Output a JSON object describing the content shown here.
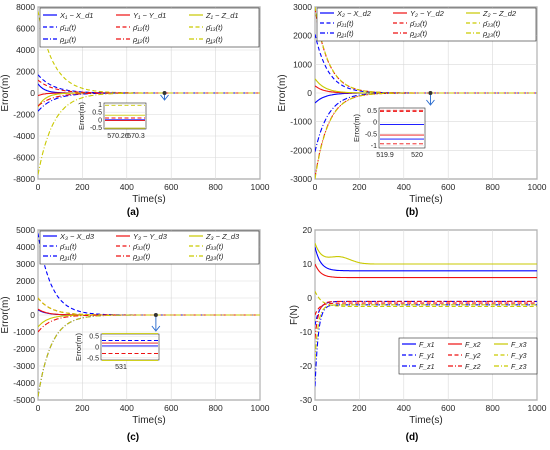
{
  "figure": {
    "panels": [
      "(a)",
      "(b)",
      "(c)",
      "(d)"
    ]
  },
  "colors": {
    "x": "#0000ff",
    "y": "#ee1111",
    "z": "#c9c900",
    "grid": "#d9d9d9",
    "axis": "#262626"
  },
  "chart_data": [
    {
      "id": "a",
      "type": "line",
      "panel_label": "(a)",
      "xlabel": "Time(s)",
      "ylabel": "Error(m)",
      "xlim": [
        0,
        1000
      ],
      "ylim": [
        -8000,
        8000
      ],
      "xticks": [
        0,
        200,
        400,
        600,
        800,
        1000
      ],
      "yticks": [
        -8000,
        -6000,
        -4000,
        -2000,
        0,
        2000,
        4000,
        6000,
        8000
      ],
      "grid": true,
      "legend": "top, 3 columns, 2 rows",
      "series": [
        {
          "name": "X₁ − X_d1",
          "color": "x",
          "style": "solid",
          "y0": 850,
          "tau": 30
        },
        {
          "name": "Y₁ − Y_d1",
          "color": "y",
          "style": "solid",
          "y0": -250,
          "tau": 28
        },
        {
          "name": "Z₁ − Z_d1",
          "color": "z",
          "style": "solid",
          "y0": -1300,
          "tau": 35
        },
        {
          "name": "ρ̄₁₁(t)",
          "color": "x",
          "style": "dash",
          "y0": 1700,
          "tau": 70
        },
        {
          "name": "ρ̄₁₂(t)",
          "color": "y",
          "style": "dash",
          "y0": 1200,
          "tau": 70
        },
        {
          "name": "ρ̄₁₃(t)",
          "color": "z",
          "style": "dash",
          "y0": 7600,
          "tau": 70
        },
        {
          "name": "ρ̲₁₁(t)",
          "color": "x",
          "style": "dashdot",
          "y0": -1700,
          "tau": 70
        },
        {
          "name": "ρ̲₁₂(t)",
          "color": "y",
          "style": "dashdot",
          "y0": -1200,
          "tau": 70
        },
        {
          "name": "ρ̲₁₃(t)",
          "color": "z",
          "style": "dashdot",
          "y0": -7600,
          "tau": 70
        }
      ],
      "inset": {
        "ylabel": "Error(m)",
        "xticks": [
          "570.26",
          "570.3"
        ],
        "yticks": [
          "1",
          "0.5",
          "0",
          "-0.5"
        ],
        "lines": [
          {
            "y": 0.3,
            "color": "z",
            "style": "solid"
          },
          {
            "y": 0.12,
            "color": "y",
            "style": "dash"
          },
          {
            "y": 0.0,
            "color": "x",
            "style": "solid"
          },
          {
            "y": -0.05,
            "color": "y",
            "style": "solid"
          },
          {
            "y": -0.55,
            "color": "z",
            "style": "solid"
          },
          {
            "y": 0.95,
            "color": "z",
            "style": "dash"
          }
        ]
      }
    },
    {
      "id": "b",
      "type": "line",
      "panel_label": "(b)",
      "xlabel": "Time(s)",
      "ylabel": "Error(m)",
      "xlim": [
        0,
        1000
      ],
      "ylim": [
        -3000,
        3000
      ],
      "xticks": [
        0,
        200,
        400,
        600,
        800,
        1000
      ],
      "yticks": [
        -3000,
        -2000,
        -1000,
        0,
        1000,
        2000,
        3000
      ],
      "grid": true,
      "legend": "top, 3 columns, 3 rows",
      "series": [
        {
          "name": "X₂ − X_d2",
          "color": "x",
          "style": "solid",
          "y0": -350,
          "tau": 45
        },
        {
          "name": "Y₂ − Y_d2",
          "color": "y",
          "style": "solid",
          "y0": 250,
          "tau": 40
        },
        {
          "name": "Z₂ − Z_d2",
          "color": "z",
          "style": "solid",
          "y0": 500,
          "tau": 45
        },
        {
          "name": "ρ̄₂₁(t)",
          "color": "x",
          "style": "dash",
          "y0": 2050,
          "tau": 60
        },
        {
          "name": "ρ̄₂₂(t)",
          "color": "y",
          "style": "dash",
          "y0": 2950,
          "tau": 60
        },
        {
          "name": "ρ̄₂₃(t)",
          "color": "z",
          "style": "dash",
          "y0": 3000,
          "tau": 60
        },
        {
          "name": "ρ̲₂₁(t)",
          "color": "x",
          "style": "dashdot",
          "y0": -2050,
          "tau": 60
        },
        {
          "name": "ρ̲₂₂(t)",
          "color": "y",
          "style": "dashdot",
          "y0": -2950,
          "tau": 60
        },
        {
          "name": "ρ̲₂₃(t)",
          "color": "z",
          "style": "dashdot",
          "y0": -3000,
          "tau": 60
        }
      ],
      "inset": {
        "ylabel": "Error(m)",
        "xticks": [
          "519.9",
          "520"
        ],
        "yticks": [
          "0.5",
          "0",
          "-0.5",
          "-1"
        ],
        "lines": [
          {
            "y": 0.5,
            "color": "y",
            "style": "dash"
          },
          {
            "y": 0.45,
            "color": "y",
            "style": "dash"
          },
          {
            "y": -0.1,
            "color": "x",
            "style": "solid"
          },
          {
            "y": -0.55,
            "color": "y",
            "style": "solid"
          },
          {
            "y": -0.72,
            "color": "x",
            "style": "solid"
          },
          {
            "y": -0.92,
            "color": "y",
            "style": "dash"
          }
        ]
      }
    },
    {
      "id": "c",
      "type": "line",
      "panel_label": "(c)",
      "xlabel": "Time(s)",
      "ylabel": "Error(m)",
      "xlim": [
        0,
        1000
      ],
      "ylim": [
        -5000,
        5000
      ],
      "xticks": [
        0,
        200,
        400,
        600,
        800,
        1000
      ],
      "yticks": [
        -5000,
        -4000,
        -3000,
        -2000,
        -1000,
        0,
        1000,
        2000,
        3000,
        4000,
        5000
      ],
      "grid": true,
      "legend": "top, 3 columns, 3 rows",
      "series": [
        {
          "name": "X₃ − X_d3",
          "color": "x",
          "style": "solid",
          "y0": 300,
          "tau": 40
        },
        {
          "name": "Y₃ − Y_d3",
          "color": "y",
          "style": "solid",
          "y0": 350,
          "tau": 40
        },
        {
          "name": "Z₃ − Z_d3",
          "color": "z",
          "style": "solid",
          "y0": -700,
          "tau": 45
        },
        {
          "name": "ρ̄₃₁(t)",
          "color": "x",
          "style": "dash",
          "y0": 4800,
          "tau": 60
        },
        {
          "name": "ρ̄₃₂(t)",
          "color": "y",
          "style": "dash",
          "y0": 1000,
          "tau": 60
        },
        {
          "name": "ρ̄₃₃(t)",
          "color": "z",
          "style": "dash",
          "y0": 1000,
          "tau": 60
        },
        {
          "name": "ρ̲₃₁(t)",
          "color": "x",
          "style": "dashdot",
          "y0": -4800,
          "tau": 60
        },
        {
          "name": "ρ̲₃₂(t)",
          "color": "y",
          "style": "dashdot",
          "y0": -1000,
          "tau": 60
        },
        {
          "name": "ρ̲₃₃(t)",
          "color": "z",
          "style": "dashdot",
          "y0": -4800,
          "tau": 60
        }
      ],
      "inset": {
        "ylabel": "Error(m)",
        "xticks": [
          "531"
        ],
        "yticks": [
          "0.5",
          "0",
          "-0.5"
        ],
        "lines": [
          {
            "y": 0.62,
            "color": "z",
            "style": "solid"
          },
          {
            "y": 0.3,
            "color": "x",
            "style": "dash"
          },
          {
            "y": 0.18,
            "color": "y",
            "style": "solid"
          },
          {
            "y": 0.05,
            "color": "x",
            "style": "solid"
          },
          {
            "y": -0.3,
            "color": "y",
            "style": "dash"
          },
          {
            "y": -0.62,
            "color": "z",
            "style": "solid"
          }
        ]
      }
    },
    {
      "id": "d",
      "type": "line",
      "panel_label": "(d)",
      "xlabel": "Time(s)",
      "ylabel": "F(N)",
      "xlim": [
        0,
        1000
      ],
      "ylim": [
        -30,
        20
      ],
      "xticks": [
        0,
        200,
        400,
        600,
        800,
        1000
      ],
      "yticks": [
        -30,
        -20,
        -10,
        0,
        10,
        20
      ],
      "grid": true,
      "legend": "bottom-right, 3 columns, 3 rows",
      "series": [
        {
          "name": "F_x1",
          "color": "x",
          "style": "solid",
          "kind": "settle",
          "y0": 15,
          "yinf": 8,
          "tau": 25
        },
        {
          "name": "F_x2",
          "color": "y",
          "style": "solid",
          "kind": "settle",
          "y0": 10,
          "yinf": 6,
          "tau": 25
        },
        {
          "name": "F_x3",
          "color": "z",
          "style": "solid",
          "kind": "overshoot",
          "y0": 16,
          "yinf": 10,
          "tau": 30
        },
        {
          "name": "F_y1",
          "color": "x",
          "style": "dash",
          "kind": "settle",
          "y0": -8,
          "yinf": -1,
          "tau": 20
        },
        {
          "name": "F_y2",
          "color": "y",
          "style": "dash",
          "kind": "settle",
          "y0": -5,
          "yinf": -1.5,
          "tau": 20
        },
        {
          "name": "F_y3",
          "color": "z",
          "style": "dash",
          "kind": "settle",
          "y0": 2,
          "yinf": -2.5,
          "tau": 30
        },
        {
          "name": "F_z1",
          "color": "x",
          "style": "dashdot",
          "kind": "settle",
          "y0": -26,
          "yinf": -2,
          "tau": 15
        },
        {
          "name": "F_z2",
          "color": "y",
          "style": "dashdot",
          "kind": "settle",
          "y0": -12,
          "yinf": -1,
          "tau": 15
        },
        {
          "name": "F_z3",
          "color": "z",
          "style": "dashdot",
          "kind": "settle",
          "y0": -18,
          "yinf": -2,
          "tau": 15
        }
      ]
    }
  ]
}
